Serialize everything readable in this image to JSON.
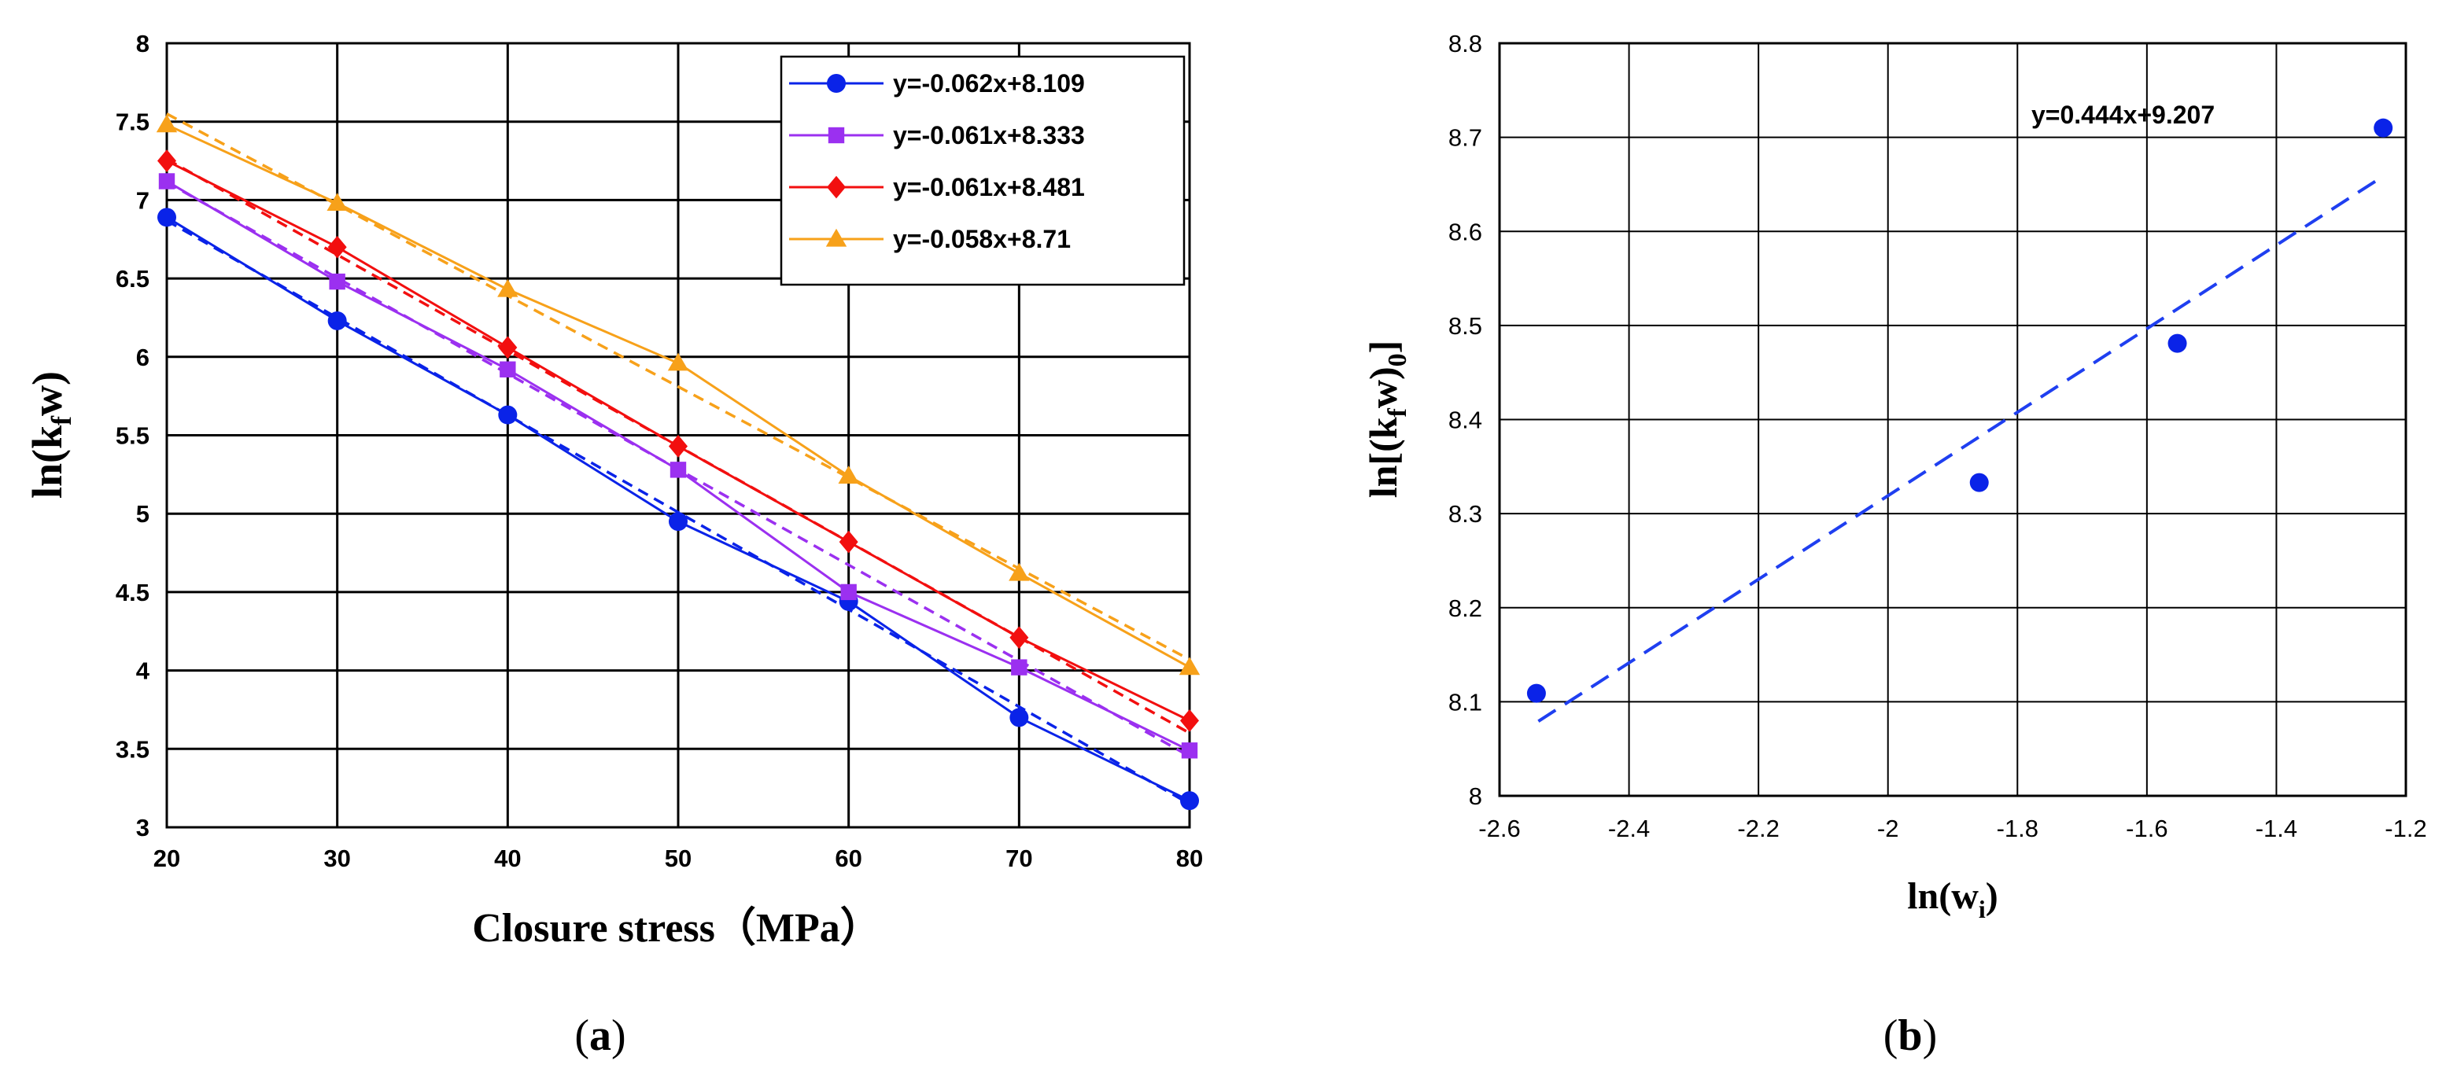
{
  "colors": {
    "blue": "#0a23e8",
    "violet": "#9b30f0",
    "red": "#f20f0f",
    "orange": "#f7a11a",
    "grid": "#000000",
    "fit_b": "#1f3ff0"
  },
  "chart_data": [
    {
      "type": "line",
      "panel_label": "(a)",
      "panel_letter": "a",
      "xlabel_main": "Closure stress",
      "xlabel_unit": "（MPa）",
      "ylabel_prefix": "ln(k",
      "ylabel_sub": "f",
      "ylabel_suffix": "w)",
      "xlim": [
        20,
        80
      ],
      "ylim": [
        3,
        8
      ],
      "x_ticks": [
        "20",
        "30",
        "40",
        "50",
        "60",
        "70",
        "80"
      ],
      "y_ticks": [
        "3",
        "3.5",
        "4",
        "4.5",
        "5",
        "5.5",
        "6",
        "6.5",
        "7",
        "7.5",
        "8"
      ],
      "grid": true,
      "legend_position": "top-right",
      "x": [
        20,
        30,
        40,
        50,
        60,
        70,
        80
      ],
      "series": [
        {
          "name": "y=-0.062x+8.109",
          "color_key": "blue",
          "marker": "circle",
          "values": [
            6.89,
            6.23,
            5.63,
            4.95,
            4.44,
            3.7,
            3.17
          ],
          "fit": {
            "slope": -0.062,
            "intercept": 8.109
          }
        },
        {
          "name": "y=-0.061x+8.333",
          "color_key": "violet",
          "marker": "square",
          "values": [
            7.12,
            6.48,
            5.92,
            5.28,
            4.5,
            4.02,
            3.49
          ],
          "fit": {
            "slope": -0.061,
            "intercept": 8.333
          }
        },
        {
          "name": "y=-0.061x+8.481",
          "color_key": "red",
          "marker": "diamond",
          "values": [
            7.25,
            6.7,
            6.06,
            5.43,
            4.82,
            4.21,
            3.68
          ],
          "fit": {
            "slope": -0.061,
            "intercept": 8.481
          }
        },
        {
          "name": "y=-0.058x+8.71",
          "color_key": "orange",
          "marker": "triangle",
          "values": [
            7.48,
            6.98,
            6.43,
            5.96,
            5.24,
            4.62,
            4.02
          ],
          "fit": {
            "slope": -0.058,
            "intercept": 8.71
          }
        }
      ]
    },
    {
      "type": "scatter",
      "panel_label": "(b)",
      "panel_letter": "b",
      "xlabel_prefix": "ln(w",
      "xlabel_sub": "i",
      "xlabel_suffix": ")",
      "ylabel_prefix": "ln[(k",
      "ylabel_sub1": "f",
      "ylabel_middle": "w)",
      "ylabel_sub2": "0",
      "ylabel_suffix": "]",
      "xlim": [
        -2.6,
        -1.2
      ],
      "ylim": [
        8.0,
        8.8
      ],
      "x_ticks": [
        "-2.6",
        "-2.4",
        "-2.2",
        "-2",
        "-1.8",
        "-1.6",
        "-1.4",
        "-1.2"
      ],
      "y_ticks": [
        "8",
        "8.1",
        "8.2",
        "8.3",
        "8.4",
        "8.5",
        "8.6",
        "8.7",
        "8.8"
      ],
      "grid": true,
      "points": [
        {
          "x": -2.543,
          "y": 8.109
        },
        {
          "x": -1.859,
          "y": 8.333
        },
        {
          "x": -1.553,
          "y": 8.481
        },
        {
          "x": -1.235,
          "y": 8.71
        }
      ],
      "fit": {
        "slope": 0.444,
        "intercept": 9.207,
        "x_from": -2.54,
        "x_to": -1.24
      },
      "annotation": "y=0.444x+9.207"
    }
  ]
}
